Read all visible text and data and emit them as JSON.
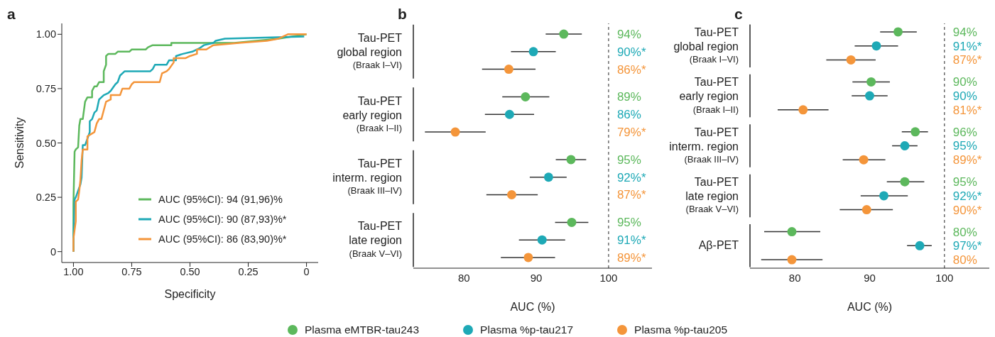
{
  "chart_data": [
    {
      "type": "line",
      "title": "a",
      "xlabel": "Specificity",
      "ylabel": "Sensitivity",
      "xlim": [
        1.05,
        -0.05
      ],
      "ylim": [
        -0.05,
        1.05
      ],
      "xticks": [
        {
          "value": 1,
          "label": "1.00"
        },
        0.75,
        {
          "value": 0.5,
          "label": "0.50"
        },
        0.25,
        {
          "value": 0,
          "label": "0"
        }
      ],
      "yticks": [
        {
          "value": 0,
          "label": "0"
        },
        0.25,
        {
          "value": 0.5,
          "label": "0.50"
        },
        0.75,
        {
          "value": 1,
          "label": "1.00"
        }
      ],
      "legend": "bottom right",
      "series": [
        {
          "name": "AUC (95%CI): 94 (91,96)%",
          "color": "#5cb85c",
          "x": [
            1.0,
            1.0,
            0.995,
            0.99,
            0.98,
            0.975,
            0.97,
            0.96,
            0.955,
            0.95,
            0.94,
            0.92,
            0.92,
            0.91,
            0.9,
            0.89,
            0.87,
            0.87,
            0.86,
            0.86,
            0.85,
            0.82,
            0.81,
            0.76,
            0.75,
            0.69,
            0.68,
            0.66,
            0.58,
            0.58,
            0.31,
            0.12,
            0.0
          ],
          "values": [
            0,
            0.22,
            0.46,
            0.47,
            0.48,
            0.58,
            0.61,
            0.61,
            0.65,
            0.69,
            0.71,
            0.71,
            0.74,
            0.76,
            0.76,
            0.78,
            0.78,
            0.83,
            0.86,
            0.9,
            0.91,
            0.91,
            0.92,
            0.92,
            0.93,
            0.93,
            0.94,
            0.95,
            0.95,
            0.96,
            0.96,
            0.98,
            1.0
          ]
        },
        {
          "name": "AUC (95%CI): 90 (87,93)%*",
          "color": "#1ea9b6",
          "x": [
            1.0,
            1.0,
            0.995,
            0.99,
            0.98,
            0.97,
            0.965,
            0.96,
            0.95,
            0.93,
            0.93,
            0.92,
            0.91,
            0.9,
            0.89,
            0.87,
            0.85,
            0.84,
            0.82,
            0.81,
            0.8,
            0.78,
            0.67,
            0.66,
            0.65,
            0.6,
            0.59,
            0.56,
            0.56,
            0.53,
            0.49,
            0.46,
            0.44,
            0.4,
            0.39,
            0.35,
            0.01
          ],
          "values": [
            0,
            0.06,
            0.24,
            0.25,
            0.28,
            0.31,
            0.34,
            0.49,
            0.49,
            0.55,
            0.6,
            0.61,
            0.64,
            0.65,
            0.7,
            0.72,
            0.73,
            0.74,
            0.77,
            0.78,
            0.81,
            0.83,
            0.83,
            0.84,
            0.86,
            0.86,
            0.88,
            0.88,
            0.9,
            0.91,
            0.92,
            0.935,
            0.95,
            0.96,
            0.97,
            0.98,
            0.99
          ]
        },
        {
          "name": "AUC (95%CI): 86 (83,90)%*",
          "color": "#f4953a",
          "x": [
            1.0,
            1.0,
            0.99,
            0.99,
            0.98,
            0.975,
            0.97,
            0.965,
            0.96,
            0.94,
            0.94,
            0.91,
            0.9,
            0.89,
            0.88,
            0.87,
            0.86,
            0.84,
            0.84,
            0.8,
            0.79,
            0.76,
            0.75,
            0.74,
            0.63,
            0.62,
            0.6,
            0.59,
            0.57,
            0.57,
            0.52,
            0.5,
            0.47,
            0.47,
            0.43,
            0.4,
            0.29,
            0.17,
            0.12,
            0.08,
            0.0
          ],
          "values": [
            0,
            0.06,
            0.14,
            0.23,
            0.24,
            0.28,
            0.33,
            0.42,
            0.47,
            0.47,
            0.53,
            0.55,
            0.59,
            0.61,
            0.61,
            0.65,
            0.69,
            0.7,
            0.72,
            0.72,
            0.75,
            0.75,
            0.77,
            0.78,
            0.78,
            0.82,
            0.83,
            0.84,
            0.87,
            0.89,
            0.89,
            0.9,
            0.91,
            0.93,
            0.93,
            0.95,
            0.96,
            0.97,
            0.98,
            1.0,
            1.0
          ]
        }
      ]
    },
    {
      "type": "scatter",
      "title": "b",
      "orientation": "horizontal",
      "xlabel": "AUC (%)",
      "xlim": [
        73,
        106
      ],
      "xticks": [
        80,
        90,
        100
      ],
      "marker": "circle",
      "legend": "bottom",
      "categories": [
        "Tau-PET\nglobal region\n(Braak I–VI)",
        "Tau-PET\nearly region\n(Braak I–II)",
        "Tau-PET\ninterm. region\n(Braak III–IV)",
        "Tau-PET\nlate region\n(Braak V–VI)"
      ],
      "ref_lines": [
        {
          "axis": "x",
          "value": 100,
          "color": "#555555",
          "line_style": "dashed"
        }
      ],
      "annotations": [
        "94%",
        "90%*",
        "86%*",
        "89%",
        "86%",
        "79%*",
        "95%",
        "92%*",
        "87%*",
        "95%",
        "91%*",
        "89%*"
      ],
      "series": [
        {
          "name": "Plasma eMTBR-tau243",
          "color": "#5cb85c",
          "values": [
            93.8,
            88.5,
            94.8,
            94.9
          ],
          "errors": [
            [
              91.3,
              96.3
            ],
            [
              85.3,
              91.8
            ],
            [
              92.7,
              96.9
            ],
            [
              92.6,
              97.2
            ]
          ]
        },
        {
          "name": "Plasma %p-tau217",
          "color": "#1ea9b6",
          "values": [
            89.6,
            86.3,
            91.7,
            90.8
          ],
          "errors": [
            [
              86.5,
              92.7
            ],
            [
              82.9,
              89.7
            ],
            [
              89.1,
              94.2
            ],
            [
              87.6,
              94.0
            ]
          ]
        },
        {
          "name": "Plasma %p-tau205",
          "color": "#f4953a",
          "values": [
            86.2,
            78.8,
            86.6,
            88.9
          ],
          "errors": [
            [
              82.5,
              89.9
            ],
            [
              74.6,
              83.0
            ],
            [
              83.1,
              90.2
            ],
            [
              85.1,
              92.6
            ]
          ]
        }
      ]
    },
    {
      "type": "scatter",
      "title": "c",
      "orientation": "horizontal",
      "xlabel": "AUC (%)",
      "xlim": [
        74,
        106
      ],
      "xticks": [
        80,
        90,
        100
      ],
      "marker": "circle",
      "categories": [
        "Tau-PET\nglobal region\n(Braak I–VI)",
        "Tau-PET\nearly region\n(Braak I–II)",
        "Tau-PET\ninterm. region\n(Braak III–IV)",
        "Tau-PET\nlate region\n(Braak V–VI)",
        "Aβ-PET"
      ],
      "ref_lines": [
        {
          "axis": "x",
          "value": 100,
          "color": "#555555",
          "line_style": "dashed"
        }
      ],
      "annotations": [
        "94%",
        "91%*",
        "87%*",
        "90%",
        "90%",
        "81%*",
        "96%",
        "95%",
        "89%*",
        "95%",
        "92%*",
        "90%*",
        "80%",
        "97%*",
        "80%"
      ],
      "series": [
        {
          "color": "#5cb85c",
          "values": [
            93.8,
            90.2,
            96.1,
            94.7,
            79.6
          ],
          "errors": [
            [
              91.4,
              96.3
            ],
            [
              87.7,
              92.7
            ],
            [
              94.3,
              97.8
            ],
            [
              92.3,
              97.3
            ],
            [
              75.9,
              83.4
            ]
          ]
        },
        {
          "color": "#1ea9b6",
          "values": [
            90.9,
            90.0,
            94.7,
            91.9,
            96.7
          ],
          "errors": [
            [
              88.0,
              93.8
            ],
            [
              87.6,
              92.4
            ],
            [
              93.0,
              96.4
            ],
            [
              88.8,
              95.1
            ],
            [
              95.0,
              98.3
            ]
          ]
        },
        {
          "color": "#f4953a",
          "values": [
            87.5,
            81.1,
            89.2,
            89.6,
            79.6
          ],
          "errors": [
            [
              84.2,
              90.8
            ],
            [
              77.7,
              84.5
            ],
            [
              86.4,
              92.1
            ],
            [
              86.0,
              93.1
            ],
            [
              75.5,
              83.7
            ]
          ]
        }
      ]
    }
  ]
}
